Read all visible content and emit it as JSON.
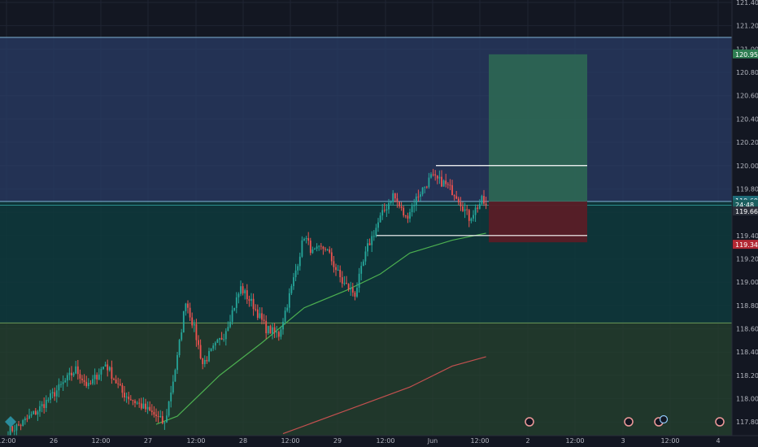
{
  "colors": {
    "background": "#131722",
    "grid": "#1f2433",
    "axis_text": "#b2b5be",
    "up_candle": "#26a69a",
    "down_candle": "#ef5350",
    "ema_fast": "#4caf50",
    "ema_slow": "#c2504f",
    "zone_top": "#2a3c66",
    "zone_mid": "#0e3a3c",
    "zone_low": "#24402e",
    "zone_border": "#7fb3d5",
    "target_box": "#2e6b53",
    "stop_box": "#5a1e26",
    "price_tag_blue": "#1e6b78",
    "price_tag_red": "#b22833",
    "price_tag_green": "#2e7d52"
  },
  "chart_data": {
    "type": "candlestick",
    "symbol_interval": "15m",
    "y_axis": {
      "ylim": [
        117.7,
        121.4
      ],
      "ticks": [
        "121.400",
        "121.200",
        "121.000",
        "120.800",
        "120.600",
        "120.400",
        "120.200",
        "120.000",
        "119.800",
        "119.600",
        "119.400",
        "119.200",
        "119.000",
        "118.800",
        "118.600",
        "118.400",
        "118.200",
        "118.000",
        "117.800"
      ]
    },
    "x_axis": {
      "ticks": [
        "12:00",
        "26",
        "12:00",
        "27",
        "12:00",
        "28",
        "12:00",
        "29",
        "12:00",
        "Jun",
        "12:00",
        "2",
        "12:00",
        "3",
        "12:00",
        "4"
      ]
    },
    "price_tags": [
      {
        "label": "120.955",
        "value": 120.955,
        "color": "green"
      },
      {
        "label": "119.692",
        "value": 119.692,
        "color": "blue"
      },
      {
        "label": "24:48",
        "value": 119.665,
        "color": "teal"
      },
      {
        "label": "119.663",
        "value": 119.663,
        "color": "dark"
      },
      {
        "label": "119.342",
        "value": 119.342,
        "color": "red"
      }
    ],
    "zones": [
      {
        "name": "upper-supply-zone",
        "from": 119.692,
        "to": 121.1
      },
      {
        "name": "middle-zone",
        "from": 118.65,
        "to": 119.692
      },
      {
        "name": "lower-demand-zone",
        "from": 117.7,
        "to": 118.65
      }
    ],
    "levels": [
      {
        "name": "resistance",
        "value": 120.0
      },
      {
        "name": "support",
        "value": 119.4
      }
    ],
    "position": {
      "entry": 119.692,
      "target": 120.955,
      "stop": 119.342
    },
    "anchors": [
      {
        "t": 0,
        "p": 117.72
      },
      {
        "t": 6,
        "p": 117.78
      },
      {
        "t": 14,
        "p": 117.9
      },
      {
        "t": 22,
        "p": 118.05
      },
      {
        "t": 32,
        "p": 118.25
      },
      {
        "t": 38,
        "p": 118.1
      },
      {
        "t": 46,
        "p": 118.3
      },
      {
        "t": 54,
        "p": 118.05
      },
      {
        "t": 62,
        "p": 117.95
      },
      {
        "t": 70,
        "p": 117.85
      },
      {
        "t": 74,
        "p": 117.78
      },
      {
        "t": 80,
        "p": 118.35
      },
      {
        "t": 84,
        "p": 118.85
      },
      {
        "t": 88,
        "p": 118.6
      },
      {
        "t": 92,
        "p": 118.3
      },
      {
        "t": 96,
        "p": 118.4
      },
      {
        "t": 102,
        "p": 118.55
      },
      {
        "t": 110,
        "p": 118.95
      },
      {
        "t": 116,
        "p": 118.8
      },
      {
        "t": 122,
        "p": 118.6
      },
      {
        "t": 128,
        "p": 118.55
      },
      {
        "t": 134,
        "p": 118.95
      },
      {
        "t": 140,
        "p": 119.4
      },
      {
        "t": 144,
        "p": 119.25
      },
      {
        "t": 150,
        "p": 119.3
      },
      {
        "t": 158,
        "p": 119.0
      },
      {
        "t": 164,
        "p": 118.9
      },
      {
        "t": 170,
        "p": 119.3
      },
      {
        "t": 176,
        "p": 119.55
      },
      {
        "t": 182,
        "p": 119.75
      },
      {
        "t": 188,
        "p": 119.55
      },
      {
        "t": 194,
        "p": 119.75
      },
      {
        "t": 200,
        "p": 119.9
      },
      {
        "t": 206,
        "p": 119.85
      },
      {
        "t": 212,
        "p": 119.75
      },
      {
        "t": 218,
        "p": 119.55
      },
      {
        "t": 224,
        "p": 119.7
      },
      {
        "t": 226,
        "p": 119.66
      }
    ],
    "ema_fast": [
      {
        "t": 70,
        "p": 117.78
      },
      {
        "t": 80,
        "p": 117.85
      },
      {
        "t": 100,
        "p": 118.2
      },
      {
        "t": 120,
        "p": 118.48
      },
      {
        "t": 140,
        "p": 118.78
      },
      {
        "t": 160,
        "p": 118.93
      },
      {
        "t": 176,
        "p": 119.07
      },
      {
        "t": 190,
        "p": 119.25
      },
      {
        "t": 210,
        "p": 119.36
      },
      {
        "t": 226,
        "p": 119.42
      }
    ],
    "ema_slow": [
      {
        "t": 130,
        "p": 117.7
      },
      {
        "t": 160,
        "p": 117.9
      },
      {
        "t": 190,
        "p": 118.1
      },
      {
        "t": 210,
        "p": 118.28
      },
      {
        "t": 226,
        "p": 118.36
      }
    ]
  }
}
